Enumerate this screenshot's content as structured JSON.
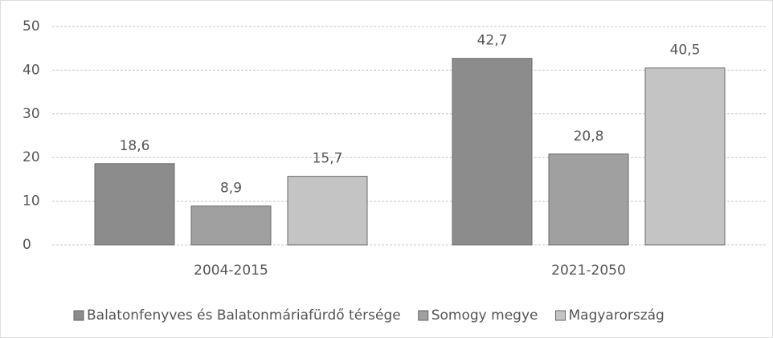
{
  "chart_data": {
    "type": "bar",
    "categories": [
      "2004-2015",
      "2021-2050"
    ],
    "series": [
      {
        "name": "Balatonfenyves és Balatonmáriafürdő térsége",
        "color": "#8c8c8c",
        "values": [
          18.6,
          42.7
        ],
        "value_labels": [
          "18,6",
          "42,7"
        ]
      },
      {
        "name": "Somogy megye",
        "color": "#a0a0a0",
        "values": [
          8.9,
          20.8
        ],
        "value_labels": [
          "8,9",
          "20,8"
        ]
      },
      {
        "name": "Magyarország",
        "color": "#c4c4c4",
        "values": [
          15.7,
          40.5
        ],
        "value_labels": [
          "15,7",
          "40,5"
        ]
      }
    ],
    "ylim": [
      0,
      50
    ],
    "yticks": [
      0,
      10,
      20,
      30,
      40,
      50
    ],
    "grid": true,
    "legend": "bottom"
  }
}
